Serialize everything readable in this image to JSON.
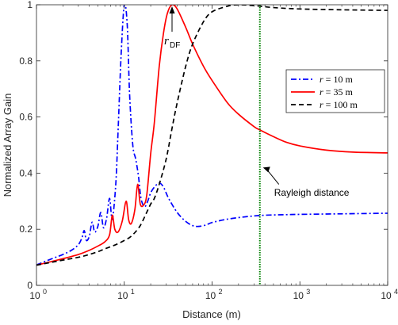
{
  "chart_data": {
    "type": "line",
    "title": "",
    "xlabel": "Distance (m)",
    "ylabel": "Normalized Array Gain",
    "xscale": "log",
    "xlim": [
      1,
      10000
    ],
    "ylim": [
      0,
      1
    ],
    "x_ticks": [
      {
        "value": 1,
        "base": "10",
        "exp": "0"
      },
      {
        "value": 10,
        "base": "10",
        "exp": "1"
      },
      {
        "value": 100,
        "base": "10",
        "exp": "2"
      },
      {
        "value": 1000,
        "base": "10",
        "exp": "3"
      },
      {
        "value": 10000,
        "base": "10",
        "exp": "4"
      }
    ],
    "y_ticks": [
      {
        "value": 0,
        "label": "0"
      },
      {
        "value": 0.2,
        "label": "0.2"
      },
      {
        "value": 0.4,
        "label": "0.4"
      },
      {
        "value": 0.6,
        "label": "0.6"
      },
      {
        "value": 0.8,
        "label": "0.8"
      },
      {
        "value": 1,
        "label": "1"
      }
    ],
    "grid": false,
    "legend_position": "top-right",
    "series": [
      {
        "name": "r = 10 m",
        "legend_var": "r",
        "legend_rest": " = 10 m",
        "color": "#0000ff",
        "dash": "dashdot",
        "points": [
          [
            1,
            0.073
          ],
          [
            1.5,
            0.095
          ],
          [
            2,
            0.11
          ],
          [
            2.5,
            0.125
          ],
          [
            3,
            0.145
          ],
          [
            3.3,
            0.17
          ],
          [
            3.5,
            0.195
          ],
          [
            3.7,
            0.16
          ],
          [
            4.0,
            0.175
          ],
          [
            4.3,
            0.225
          ],
          [
            4.6,
            0.19
          ],
          [
            5.0,
            0.21
          ],
          [
            5.4,
            0.26
          ],
          [
            5.8,
            0.205
          ],
          [
            6.3,
            0.24
          ],
          [
            6.8,
            0.31
          ],
          [
            7.3,
            0.235
          ],
          [
            8.0,
            0.36
          ],
          [
            8.5,
            0.55
          ],
          [
            9.2,
            0.82
          ],
          [
            10,
            1.0
          ],
          [
            10.8,
            0.93
          ],
          [
            11.5,
            0.68
          ],
          [
            12.5,
            0.5
          ],
          [
            13.5,
            0.45
          ],
          [
            14.5,
            0.39
          ],
          [
            15.5,
            0.31
          ],
          [
            17,
            0.28
          ],
          [
            18.5,
            0.3
          ],
          [
            20,
            0.33
          ],
          [
            22,
            0.35
          ],
          [
            25,
            0.365
          ],
          [
            28,
            0.35
          ],
          [
            32,
            0.31
          ],
          [
            40,
            0.26
          ],
          [
            50,
            0.228
          ],
          [
            60,
            0.213
          ],
          [
            70,
            0.21
          ],
          [
            85,
            0.215
          ],
          [
            100,
            0.224
          ],
          [
            150,
            0.236
          ],
          [
            250,
            0.245
          ],
          [
            400,
            0.25
          ],
          [
            700,
            0.252
          ],
          [
            1000,
            0.253
          ],
          [
            3000,
            0.255
          ],
          [
            10000,
            0.257
          ]
        ]
      },
      {
        "name": "r = 35 m",
        "legend_var": "r",
        "legend_rest": " = 35 m",
        "color": "#ff0000",
        "dash": "solid",
        "points": [
          [
            1,
            0.072
          ],
          [
            2,
            0.095
          ],
          [
            3,
            0.11
          ],
          [
            4,
            0.125
          ],
          [
            5,
            0.14
          ],
          [
            6,
            0.155
          ],
          [
            6.8,
            0.18
          ],
          [
            7.3,
            0.25
          ],
          [
            7.8,
            0.2
          ],
          [
            8.5,
            0.19
          ],
          [
            9.5,
            0.23
          ],
          [
            10.5,
            0.3
          ],
          [
            11.2,
            0.235
          ],
          [
            12,
            0.22
          ],
          [
            13.2,
            0.27
          ],
          [
            14.2,
            0.36
          ],
          [
            15.2,
            0.29
          ],
          [
            16.5,
            0.285
          ],
          [
            18,
            0.32
          ],
          [
            20,
            0.47
          ],
          [
            22,
            0.58
          ],
          [
            25,
            0.78
          ],
          [
            28,
            0.9
          ],
          [
            31,
            0.97
          ],
          [
            35,
            1.0
          ],
          [
            40,
            0.985
          ],
          [
            50,
            0.92
          ],
          [
            60,
            0.86
          ],
          [
            80,
            0.78
          ],
          [
            100,
            0.73
          ],
          [
            150,
            0.65
          ],
          [
            200,
            0.61
          ],
          [
            300,
            0.566
          ],
          [
            350,
            0.554
          ],
          [
            500,
            0.53
          ],
          [
            700,
            0.51
          ],
          [
            1000,
            0.497
          ],
          [
            2000,
            0.482
          ],
          [
            4000,
            0.475
          ],
          [
            10000,
            0.472
          ]
        ]
      },
      {
        "name": "r = 100 m",
        "legend_var": "r",
        "legend_rest": " = 100 m",
        "color": "#000000",
        "dash": "dashed",
        "points": [
          [
            1,
            0.072
          ],
          [
            2,
            0.09
          ],
          [
            3,
            0.1
          ],
          [
            4,
            0.11
          ],
          [
            5,
            0.12
          ],
          [
            6,
            0.13
          ],
          [
            8,
            0.145
          ],
          [
            10,
            0.16
          ],
          [
            12,
            0.175
          ],
          [
            15,
            0.21
          ],
          [
            18,
            0.26
          ],
          [
            20,
            0.29
          ],
          [
            22,
            0.31
          ],
          [
            25,
            0.36
          ],
          [
            30,
            0.45
          ],
          [
            35,
            0.56
          ],
          [
            40,
            0.65
          ],
          [
            50,
            0.78
          ],
          [
            60,
            0.86
          ],
          [
            80,
            0.94
          ],
          [
            100,
            0.975
          ],
          [
            150,
            0.995
          ],
          [
            200,
            1.0
          ],
          [
            300,
            0.997
          ],
          [
            500,
            0.99
          ],
          [
            1000,
            0.985
          ],
          [
            3000,
            0.982
          ],
          [
            10000,
            0.98
          ]
        ]
      }
    ],
    "rayleigh": {
      "x": 350,
      "color": "#008000",
      "label": "Rayleigh distance"
    },
    "annotations": {
      "rdf_var": "r",
      "rdf_sub": "DF",
      "rdf_x": 35,
      "rdf_y": 1.0
    }
  }
}
